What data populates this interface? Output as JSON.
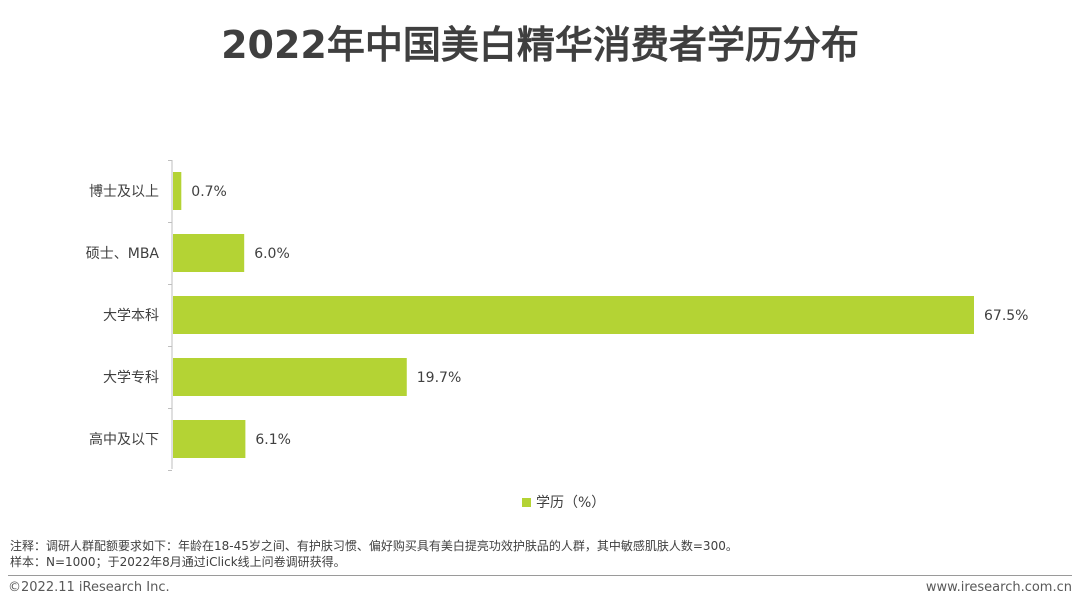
{
  "title": "2022年中国美白精华消费者学历分布",
  "chart_data": {
    "type": "bar",
    "orientation": "horizontal",
    "categories": [
      "博士及以上",
      "硕士、MBA",
      "大学本科",
      "大学专科",
      "高中及以下"
    ],
    "series": [
      {
        "name": "学历（%）",
        "values": [
          0.7,
          6.0,
          67.5,
          19.7,
          6.1
        ],
        "labels": [
          "0.7%",
          "6.0%",
          "67.5%",
          "19.7%",
          "6.1%"
        ],
        "color": "#b4d334"
      }
    ],
    "xlim": [
      0,
      67.5
    ],
    "grid": false,
    "legend_position": "bottom"
  },
  "legend": {
    "label": "学历（%）"
  },
  "notes": {
    "line1": "注释：调研人群配额要求如下：年龄在18-45岁之间、有护肤习惯、偏好购买具有美白提亮功效护肤品的人群，其中敏感肌肤人数=300。",
    "line2": "样本：N=1000；于2022年8月通过iClick线上问卷调研获得。"
  },
  "footer": {
    "copyright": "©2022.11 iResearch Inc.",
    "website": "www.iresearch.com.cn"
  },
  "colors": {
    "bar": "#b4d334",
    "axis": "#bfbfbf",
    "text": "#404040"
  }
}
